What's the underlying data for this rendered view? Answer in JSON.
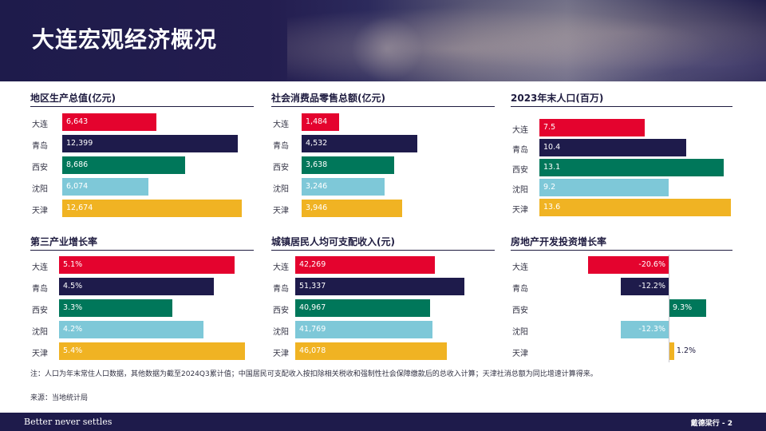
{
  "header": {
    "title": "大连宏观经济概况"
  },
  "colors": {
    "大连": "#e4032e",
    "青岛": "#1e1b4b",
    "西安": "#00775a",
    "沈阳": "#7ec8d8",
    "天津": "#f0b323",
    "rule": "#1e1b3f"
  },
  "panels": [
    {
      "id": "gdp",
      "title": "地区生产总值(亿元)",
      "chart_data": {
        "type": "bar",
        "orientation": "horizontal",
        "categories": [
          "大连",
          "青岛",
          "西安",
          "沈阳",
          "天津"
        ],
        "values": [
          6643,
          12399,
          8686,
          6074,
          12674
        ],
        "labels": [
          "6,643",
          "12,399",
          "8,686",
          "6,074",
          "12,674"
        ]
      }
    },
    {
      "id": "retail",
      "title": "社会消费品零售总额(亿元)",
      "chart_data": {
        "type": "bar",
        "orientation": "horizontal",
        "categories": [
          "大连",
          "青岛",
          "西安",
          "沈阳",
          "天津"
        ],
        "values": [
          1484,
          4532,
          3638,
          3246,
          3946
        ],
        "labels": [
          "1,484",
          "4,532",
          "3,638",
          "3,246",
          "3,946"
        ]
      }
    },
    {
      "id": "pop",
      "title": "2023年末人口(百万)",
      "chart_data": {
        "type": "bar",
        "orientation": "horizontal",
        "categories": [
          "大连",
          "青岛",
          "西安",
          "沈阳",
          "天津"
        ],
        "values": [
          7.5,
          10.4,
          13.1,
          9.2,
          13.6
        ],
        "labels": [
          "7.5",
          "10.4",
          "13.1",
          "9.2",
          "13.6"
        ]
      }
    },
    {
      "id": "tertiary",
      "title": "第三产业增长率",
      "chart_data": {
        "type": "bar",
        "orientation": "horizontal",
        "categories": [
          "大连",
          "青岛",
          "西安",
          "沈阳",
          "天津"
        ],
        "values": [
          5.1,
          4.5,
          3.3,
          4.2,
          5.4
        ],
        "labels": [
          "5.1%",
          "4.5%",
          "3.3%",
          "4.2%",
          "5.4%"
        ]
      }
    },
    {
      "id": "income",
      "title": "城镇居民人均可支配收入(元)",
      "chart_data": {
        "type": "bar",
        "orientation": "horizontal",
        "categories": [
          "大连",
          "青岛",
          "西安",
          "沈阳",
          "天津"
        ],
        "values": [
          42269,
          51337,
          40967,
          41769,
          46078
        ],
        "labels": [
          "42,269",
          "51,337",
          "40,967",
          "41,769",
          "46,078"
        ]
      }
    },
    {
      "id": "realestate",
      "title": "房地产开发投资增长率",
      "chart_data": {
        "type": "bar",
        "orientation": "horizontal",
        "categories": [
          "大连",
          "青岛",
          "西安",
          "沈阳",
          "天津"
        ],
        "values": [
          -20.6,
          -12.2,
          9.3,
          -12.3,
          1.2
        ],
        "labels": [
          "-20.6%",
          "-12.2%",
          "9.3%",
          "-12.3%",
          "1.2%"
        ]
      }
    }
  ],
  "note": "注：人口为年末常住人口数据，其他数据为截至2024Q3累计值；中国居民可支配收入按扣除相关税收和强制性社会保障缴款后的总收入计算；天津社消总额为同比增速计算得来。",
  "source": "来源：当地统计局",
  "footer": {
    "slogan": "Better never settles",
    "page": "戴德梁行 - 2"
  }
}
